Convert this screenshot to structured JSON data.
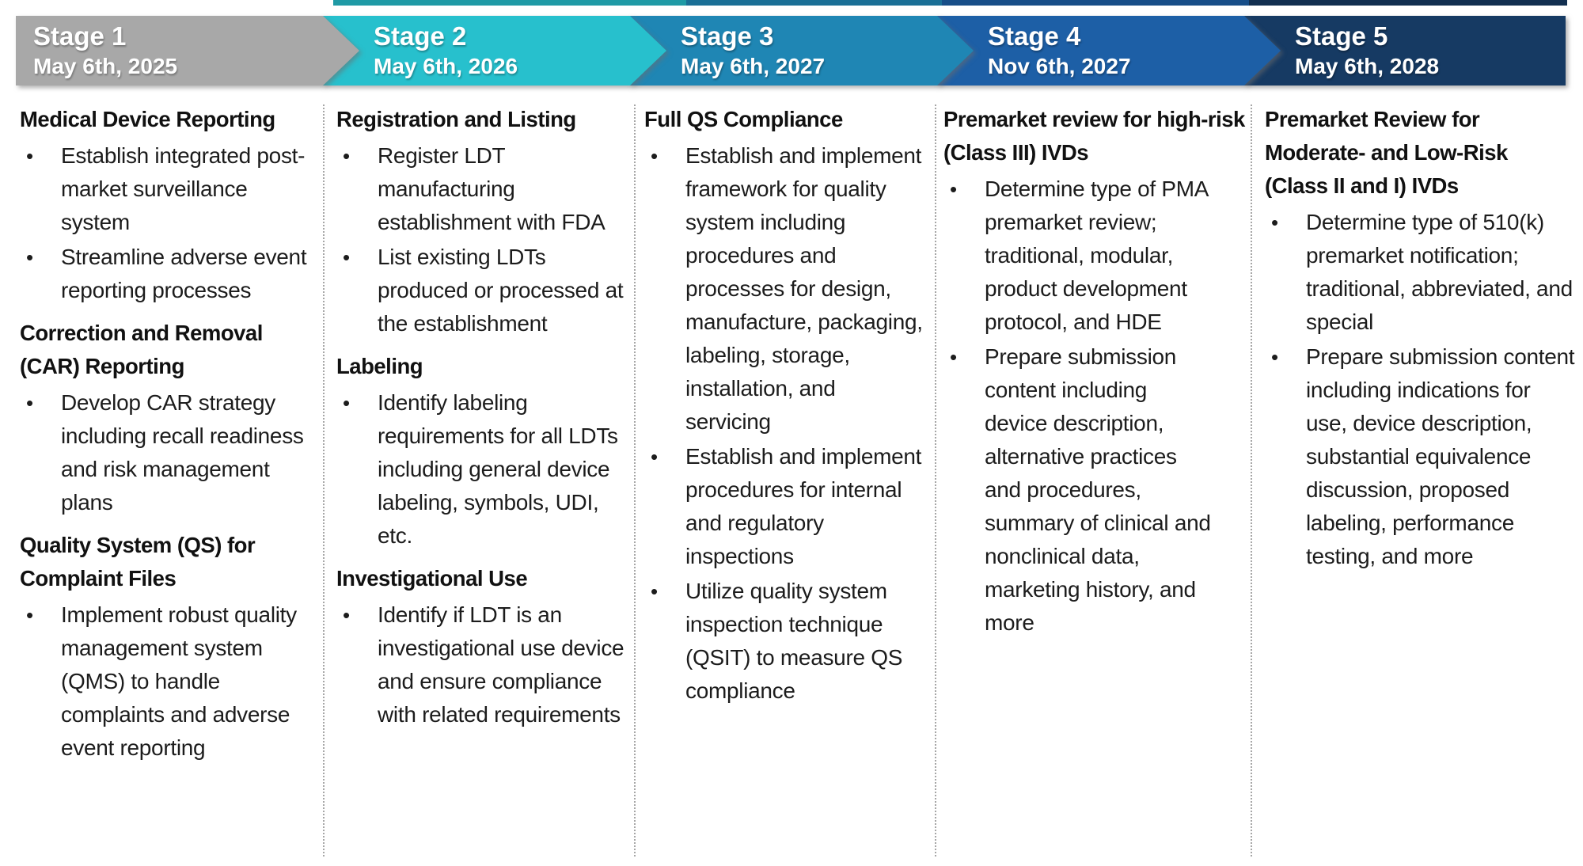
{
  "ui": {
    "bullet_char": "•"
  },
  "colors": {
    "stage1": "#a8a8a8",
    "stage2": "#27c0cd",
    "stage3": "#1f86b4",
    "stage4": "#1d5fa6",
    "stage5": "#163a63",
    "text": "#1c1c1c",
    "divider": "#a6a6a6"
  },
  "stages": [
    {
      "title": "Stage 1",
      "date": "May 6th, 2025",
      "color": "#a8a8a8",
      "blocks": [
        {
          "kind": "heading",
          "text": "Medical Device Reporting"
        },
        {
          "kind": "bullet",
          "text": "Establish integrated post-market surveillance system"
        },
        {
          "kind": "bullet",
          "text": "Streamline adverse event reporting processes"
        },
        {
          "kind": "heading",
          "text": "Correction and Removal (CAR) Reporting"
        },
        {
          "kind": "bullet",
          "text": "Develop CAR strategy including recall readiness and risk management plans"
        },
        {
          "kind": "heading",
          "text": "Quality System (QS) for Complaint Files"
        },
        {
          "kind": "bullet",
          "text": "Implement robust quality management system (QMS) to handle complaints and adverse event reporting"
        }
      ]
    },
    {
      "title": "Stage 2",
      "date": "May 6th, 2026",
      "color": "#27c0cd",
      "blocks": [
        {
          "kind": "heading",
          "text": "Registration and Listing"
        },
        {
          "kind": "bullet",
          "text": "Register LDT manufacturing establishment with FDA"
        },
        {
          "kind": "bullet",
          "text": "List existing LDTs produced or processed at the establishment"
        },
        {
          "kind": "heading",
          "text": "Labeling"
        },
        {
          "kind": "bullet",
          "text": "Identify labeling requirements for all LDTs including general device labeling, symbols, UDI, etc."
        },
        {
          "kind": "heading",
          "text": "Investigational Use"
        },
        {
          "kind": "bullet",
          "text": "Identify if LDT is an investigational use device and ensure compliance with related requirements"
        }
      ]
    },
    {
      "title": "Stage 3",
      "date": "May 6th, 2027",
      "color": "#1f86b4",
      "blocks": [
        {
          "kind": "heading",
          "text": "Full QS Compliance"
        },
        {
          "kind": "bullet",
          "text": "Establish and implement framework for quality system including procedures and processes for design, manufacture, packaging, labeling, storage, installation, and servicing"
        },
        {
          "kind": "bullet",
          "text": "Establish and implement procedures for internal and regulatory inspections"
        },
        {
          "kind": "bullet",
          "text": "Utilize quality system inspection technique (QSIT) to measure QS compliance"
        }
      ]
    },
    {
      "title": "Stage 4",
      "date": "Nov 6th, 2027",
      "color": "#1d5fa6",
      "blocks": [
        {
          "kind": "heading",
          "text": "Premarket review for high-risk (Class III) IVDs"
        },
        {
          "kind": "bullet",
          "text": "Determine type of PMA premarket review; traditional, modular, product development protocol, and HDE"
        },
        {
          "kind": "bullet",
          "text": "Prepare submission content including device description, alternative practices and procedures, summary of clinical and nonclinical data, marketing history, and more"
        }
      ]
    },
    {
      "title": "Stage 5",
      "date": "May 6th, 2028",
      "color": "#163a63",
      "blocks": [
        {
          "kind": "heading",
          "text": "Premarket Review for Moderate- and Low-Risk (Class II and I) IVDs"
        },
        {
          "kind": "bullet",
          "text": "Determine type of 510(k) premarket notification; traditional, abbreviated, and special"
        },
        {
          "kind": "bullet",
          "text": "Prepare submission content including indications for use, device description, substantial equivalence discussion, proposed labeling, performance testing, and more"
        }
      ]
    }
  ]
}
